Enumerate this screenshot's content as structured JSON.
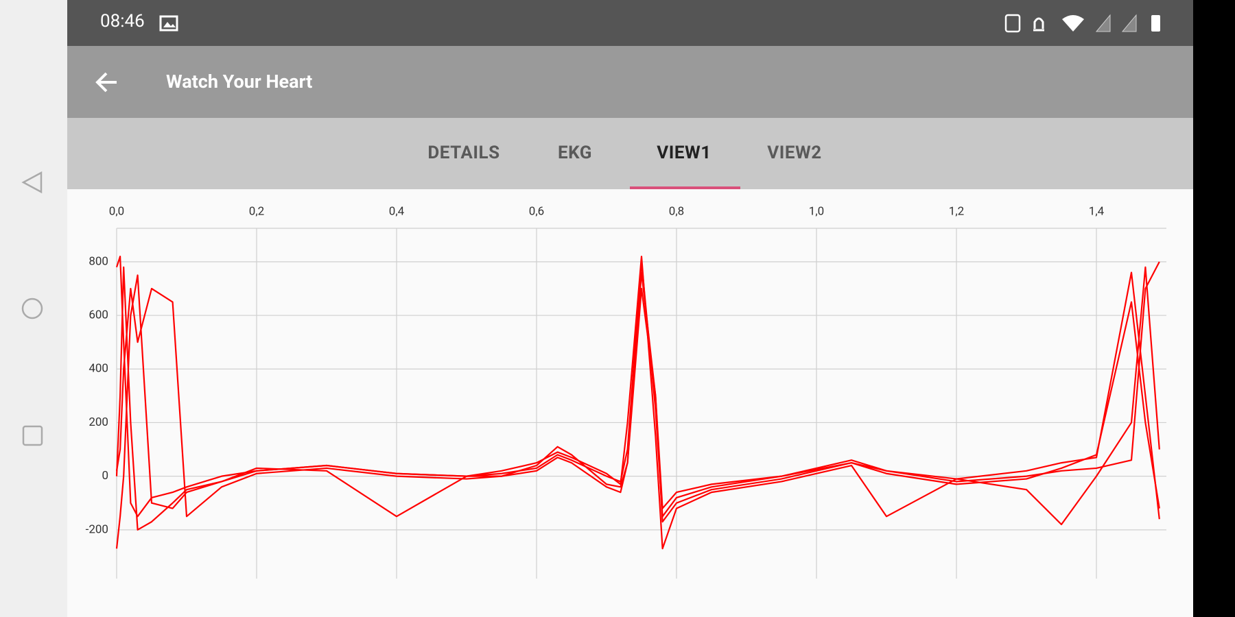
{
  "status_bar": {
    "time": "08:46"
  },
  "app_bar": {
    "title": "Watch Your Heart"
  },
  "tabs": [
    "DETAILS",
    "EKG",
    "VIEW1",
    "VIEW2"
  ],
  "chart_data": {
    "type": "line",
    "x": [
      0,
      0.005,
      0.01,
      0.02,
      0.03,
      0.05,
      0.08,
      0.1,
      0.15,
      0.2,
      0.3,
      0.4,
      0.5,
      0.55,
      0.6,
      0.63,
      0.65,
      0.7,
      0.72,
      0.73,
      0.75,
      0.77,
      0.78,
      0.8,
      0.85,
      0.95,
      1.05,
      1.1,
      1.2,
      1.3,
      1.35,
      1.4,
      1.45,
      1.47,
      1.49
    ],
    "series": [
      {
        "color": "#ff0000",
        "values": [
          780,
          820,
          500,
          -100,
          -150,
          -80,
          -60,
          -40,
          0,
          20,
          40,
          10,
          0,
          10,
          30,
          80,
          60,
          0,
          -20,
          100,
          800,
          250,
          -150,
          -80,
          -40,
          0,
          60,
          20,
          -20,
          0,
          20,
          30,
          60,
          700,
          800
        ]
      },
      {
        "color": "#ff0000",
        "values": [
          20,
          100,
          400,
          700,
          500,
          700,
          650,
          -150,
          -40,
          10,
          30,
          0,
          -10,
          0,
          40,
          110,
          80,
          -30,
          -40,
          50,
          760,
          300,
          -170,
          -100,
          -50,
          -10,
          50,
          10,
          -30,
          -10,
          30,
          80,
          650,
          200,
          -120
        ]
      },
      {
        "color": "#ff0000",
        "values": [
          -270,
          -150,
          0,
          600,
          750,
          -100,
          -120,
          -60,
          -20,
          30,
          20,
          -150,
          0,
          20,
          50,
          90,
          70,
          10,
          -30,
          200,
          820,
          150,
          -270,
          -120,
          -60,
          -20,
          40,
          -150,
          -10,
          -50,
          -180,
          0,
          200,
          780,
          100
        ]
      },
      {
        "color": "#ff0000",
        "values": [
          0,
          300,
          780,
          200,
          -200,
          -170,
          -100,
          -50,
          -20,
          20,
          40,
          10,
          0,
          0,
          20,
          70,
          50,
          -40,
          -60,
          50,
          700,
          300,
          -120,
          -60,
          -30,
          0,
          50,
          20,
          -10,
          20,
          50,
          70,
          760,
          300,
          -160
        ]
      }
    ],
    "xlim": [
      0,
      1.5
    ],
    "xticks": [
      {
        "value": 0,
        "label": "0,0"
      },
      {
        "value": 0.2,
        "label": "0,2"
      },
      {
        "value": 0.4,
        "label": "0,4"
      },
      {
        "value": 0.6,
        "label": "0,6"
      },
      {
        "value": 0.8,
        "label": "0,8"
      },
      {
        "value": 1.0,
        "label": "1,0"
      },
      {
        "value": 1.2,
        "label": "1,2"
      },
      {
        "value": 1.4,
        "label": "1,4"
      }
    ],
    "ylim": [
      -382,
      925
    ],
    "yticks": [
      -200,
      0,
      200,
      400,
      600,
      800
    ],
    "grid": true
  }
}
